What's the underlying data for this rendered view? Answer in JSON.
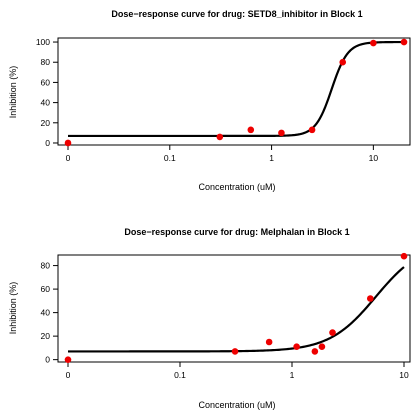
{
  "chart_data": [
    {
      "type": "line",
      "title": "Dose−response curve for drug: SETD8_inhibitor in Block 1",
      "xlabel": "Concentration (uM)",
      "ylabel": "Inhibition (%)",
      "xscale": "log",
      "xlim": [
        0.01,
        20
      ],
      "ylim": [
        -2,
        104
      ],
      "grid": false,
      "xticks": [
        {
          "value": 0.01,
          "label": "0"
        },
        {
          "value": 0.1,
          "label": "0.1"
        },
        {
          "value": 1,
          "label": "1"
        },
        {
          "value": 10,
          "label": "10"
        }
      ],
      "yticks": [
        0,
        20,
        40,
        60,
        80,
        100
      ],
      "points": {
        "x": [
          0.01,
          0.31,
          0.625,
          1.25,
          2.5,
          5,
          10,
          20
        ],
        "y": [
          0,
          6,
          13,
          10,
          13,
          80,
          99,
          100
        ]
      },
      "curve": {
        "bottom": 7,
        "top": 100,
        "ec50": 3.9,
        "hill": 5.5
      }
    },
    {
      "type": "line",
      "title": "Dose−response curve for drug: Melphalan in Block 1",
      "xlabel": "Concentration (uM)",
      "ylabel": "Inhibition (%)",
      "xscale": "log",
      "xlim": [
        0.01,
        10
      ],
      "ylim": [
        -2,
        89
      ],
      "grid": false,
      "xticks": [
        {
          "value": 0.01,
          "label": "0"
        },
        {
          "value": 0.1,
          "label": "0.1"
        },
        {
          "value": 1,
          "label": "1"
        },
        {
          "value": 10,
          "label": "10"
        }
      ],
      "yticks": [
        0,
        20,
        40,
        60,
        80
      ],
      "points": {
        "x": [
          0.01,
          0.31,
          0.625,
          1.1,
          1.6,
          1.85,
          2.3,
          5,
          10
        ],
        "y": [
          0,
          7,
          15,
          11,
          7,
          11,
          23,
          52,
          88
        ]
      },
      "curve": {
        "bottom": 7,
        "top": 100,
        "ec50": 5.6,
        "hill": 2.1
      }
    }
  ]
}
